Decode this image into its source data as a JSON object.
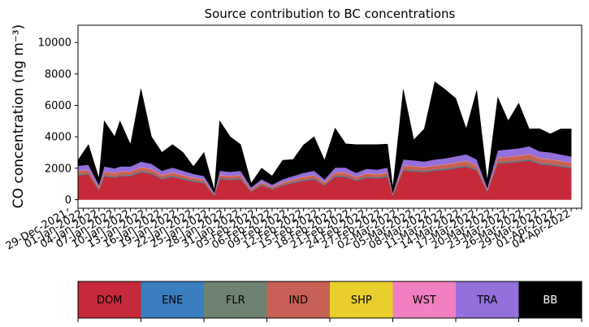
{
  "chart_data": {
    "type": "area",
    "stacked": true,
    "title": "Source contribution to BC concentrations",
    "ylabel": "CO concentration (ng m⁻³)",
    "xlabel": "",
    "ylim": [
      -550,
      11100
    ],
    "yticks": [
      0,
      2000,
      4000,
      6000,
      8000,
      10000
    ],
    "x_start": "2021-12-31",
    "x_end": "2022-04-06",
    "xticks": [
      "29-Dec-2021",
      "01-Jan-2022",
      "04-Jan-2022",
      "07-Jan-2022",
      "10-Jan-2022",
      "13-Jan-2022",
      "16-Jan-2022",
      "19-Jan-2022",
      "22-Jan-2022",
      "25-Jan-2022",
      "28-Jan-2022",
      "31-Jan-2022",
      "03-Feb-2022",
      "06-Feb-2022",
      "09-Feb-2022",
      "12-Feb-2022",
      "15-Feb-2022",
      "18-Feb-2022",
      "21-Feb-2022",
      "24-Feb-2022",
      "27-Feb-2022",
      "02-Mar-2022",
      "05-Mar-2022",
      "08-Mar-2022",
      "11-Mar-2022",
      "14-Mar-2022",
      "17-Mar-2022",
      "20-Mar-2022",
      "23-Mar-2022",
      "26-Mar-2022",
      "29-Mar-2022",
      "01-Apr-2022",
      "04-Apr-2022"
    ],
    "x": [
      "2021-12-31",
      "2022-01-02",
      "2022-01-04",
      "2022-01-05",
      "2022-01-07",
      "2022-01-08",
      "2022-01-10",
      "2022-01-12",
      "2022-01-14",
      "2022-01-16",
      "2022-01-18",
      "2022-01-20",
      "2022-01-22",
      "2022-01-24",
      "2022-01-26",
      "2022-01-27",
      "2022-01-29",
      "2022-01-31",
      "2022-02-02",
      "2022-02-04",
      "2022-02-06",
      "2022-02-08",
      "2022-02-10",
      "2022-02-12",
      "2022-02-14",
      "2022-02-16",
      "2022-02-18",
      "2022-02-20",
      "2022-02-22",
      "2022-02-24",
      "2022-02-26",
      "2022-02-28",
      "2022-03-01",
      "2022-03-03",
      "2022-03-05",
      "2022-03-07",
      "2022-03-09",
      "2022-03-11",
      "2022-03-13",
      "2022-03-15",
      "2022-03-17",
      "2022-03-19",
      "2022-03-21",
      "2022-03-23",
      "2022-03-25",
      "2022-03-27",
      "2022-03-29",
      "2022-03-31",
      "2022-04-02",
      "2022-04-04"
    ],
    "series": [
      {
        "name": "DOM",
        "color": "#c62a39",
        "values": [
          1550,
          1600,
          600,
          1500,
          1400,
          1500,
          1500,
          1750,
          1650,
          1300,
          1450,
          1300,
          1150,
          1050,
          250,
          1300,
          1250,
          1300,
          500,
          900,
          650,
          900,
          1050,
          1200,
          1300,
          900,
          1450,
          1450,
          1200,
          1400,
          1350,
          1450,
          250,
          1850,
          1800,
          1750,
          1850,
          1900,
          2000,
          2100,
          1850,
          500,
          2300,
          2350,
          2400,
          2500,
          2250,
          2200,
          2100,
          2000
        ]
      },
      {
        "name": "ENE",
        "color": "#3a7ebf",
        "values": [
          30,
          30,
          20,
          30,
          30,
          30,
          30,
          30,
          30,
          30,
          30,
          30,
          30,
          30,
          20,
          30,
          30,
          30,
          20,
          30,
          20,
          30,
          30,
          30,
          30,
          30,
          30,
          30,
          30,
          30,
          30,
          30,
          20,
          30,
          30,
          30,
          30,
          30,
          30,
          30,
          30,
          20,
          30,
          30,
          30,
          30,
          30,
          30,
          30,
          30
        ]
      },
      {
        "name": "FLR",
        "color": "#6d8270",
        "values": [
          50,
          50,
          30,
          50,
          50,
          50,
          50,
          50,
          50,
          50,
          50,
          50,
          50,
          50,
          20,
          50,
          50,
          50,
          30,
          40,
          30,
          40,
          40,
          50,
          50,
          40,
          50,
          50,
          50,
          50,
          50,
          50,
          20,
          60,
          60,
          60,
          60,
          60,
          60,
          60,
          60,
          20,
          60,
          60,
          60,
          60,
          60,
          60,
          60,
          60
        ]
      },
      {
        "name": "IND",
        "color": "#c96055",
        "values": [
          200,
          200,
          120,
          200,
          190,
          200,
          200,
          220,
          210,
          170,
          190,
          170,
          150,
          140,
          60,
          170,
          160,
          170,
          90,
          120,
          100,
          120,
          140,
          160,
          170,
          120,
          190,
          190,
          160,
          180,
          180,
          190,
          60,
          230,
          230,
          220,
          230,
          240,
          250,
          260,
          230,
          90,
          280,
          280,
          290,
          300,
          280,
          270,
          260,
          250
        ]
      },
      {
        "name": "SHP",
        "color": "#e8cf2e",
        "values": [
          10,
          10,
          10,
          10,
          10,
          10,
          10,
          10,
          10,
          10,
          10,
          10,
          10,
          10,
          5,
          10,
          10,
          10,
          5,
          10,
          5,
          10,
          10,
          10,
          10,
          10,
          10,
          10,
          10,
          10,
          10,
          10,
          5,
          10,
          10,
          10,
          10,
          10,
          10,
          10,
          10,
          5,
          10,
          10,
          10,
          10,
          10,
          10,
          10,
          10
        ]
      },
      {
        "name": "WST",
        "color": "#f27fbf",
        "values": [
          20,
          20,
          10,
          20,
          20,
          20,
          20,
          20,
          20,
          20,
          20,
          20,
          20,
          20,
          10,
          20,
          20,
          20,
          10,
          20,
          10,
          20,
          20,
          20,
          20,
          20,
          20,
          20,
          20,
          20,
          20,
          20,
          10,
          20,
          20,
          20,
          20,
          20,
          20,
          20,
          20,
          10,
          20,
          20,
          20,
          20,
          20,
          20,
          20,
          20
        ]
      },
      {
        "name": "TRA",
        "color": "#9370db",
        "values": [
          300,
          310,
          150,
          300,
          290,
          300,
          300,
          340,
          320,
          260,
          290,
          260,
          230,
          210,
          80,
          260,
          250,
          260,
          130,
          180,
          140,
          180,
          210,
          240,
          260,
          180,
          290,
          290,
          240,
          280,
          270,
          290,
          80,
          360,
          350,
          340,
          360,
          370,
          390,
          410,
          360,
          120,
          440,
          450,
          460,
          480,
          430,
          420,
          400,
          380
        ]
      },
      {
        "name": "BB",
        "color": "#000000",
        "values": [
          340,
          1280,
          400,
          2890,
          2010,
          2890,
          1390,
          4630,
          1710,
          1160,
          1460,
          1160,
          460,
          1485,
          145,
          3160,
          2230,
          1660,
          255,
          700,
          545,
          1200,
          1050,
          1770,
          2160,
          1200,
          2510,
          1510,
          1790,
          1530,
          1590,
          1490,
          305,
          4440,
          1300,
          2070,
          4940,
          4370,
          3680,
          1610,
          4380,
          435,
          3360,
          1810,
          2860,
          1100,
          1430,
          1170,
          1620,
          1750
        ]
      }
    ]
  },
  "legend": [
    {
      "label": "DOM",
      "color": "#c62a39",
      "text_color": "#000000"
    },
    {
      "label": "ENE",
      "color": "#3a7ebf",
      "text_color": "#000000"
    },
    {
      "label": "FLR",
      "color": "#6d8270",
      "text_color": "#000000"
    },
    {
      "label": "IND",
      "color": "#c96055",
      "text_color": "#000000"
    },
    {
      "label": "SHP",
      "color": "#e8cf2e",
      "text_color": "#000000"
    },
    {
      "label": "WST",
      "color": "#f27fbf",
      "text_color": "#000000"
    },
    {
      "label": "TRA",
      "color": "#9370db",
      "text_color": "#000000"
    },
    {
      "label": "BB",
      "color": "#000000",
      "text_color": "#ffffff"
    }
  ]
}
